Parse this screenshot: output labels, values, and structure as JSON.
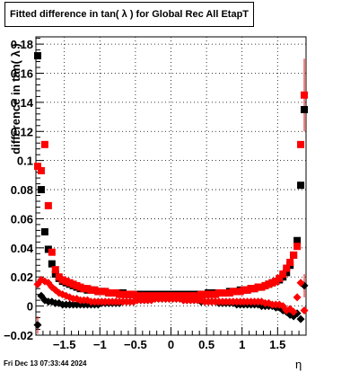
{
  "title": "Fitted difference in tan( λ ) for Global Rec All EtapT",
  "footer": "Fri Dec 13 07:33:44 2024",
  "chart_data": {
    "type": "scatter",
    "title": "Fitted difference in tan( λ ) for Global Rec All EtapT",
    "xlabel": "η",
    "ylabel": "difference in tan( λ )",
    "xlim": [
      -1.9,
      1.9
    ],
    "ylim": [
      -0.02,
      0.185
    ],
    "xticks": [
      -1.5,
      -1,
      -0.5,
      0,
      0.5,
      1,
      1.5
    ],
    "xtick_labels": [
      "−1.5",
      "−1",
      "−0.5",
      "0",
      "0.5",
      "1",
      "1.5"
    ],
    "yticks": [
      -0.02,
      0,
      0.02,
      0.04,
      0.06,
      0.08,
      0.1,
      0.12,
      0.14,
      0.16,
      0.18
    ],
    "ytick_labels": [
      "−0.02",
      "0",
      "0.02",
      "0.04",
      "0.06",
      "0.08",
      "0.1",
      "0.12",
      "0.14",
      "0.16",
      "0.18"
    ],
    "grid": true,
    "series": [
      {
        "color": "#000000",
        "marker": "square",
        "x": [
          -1.875,
          -1.825,
          -1.775,
          -1.725,
          -1.675,
          -1.625,
          -1.575,
          -1.525,
          -1.475,
          -1.425,
          -1.375,
          -1.325,
          -1.275,
          -1.225,
          -1.175,
          -1.125,
          -1.075,
          -1.025,
          -0.975,
          -0.925,
          -0.875,
          -0.825,
          -0.775,
          -0.725,
          -0.675,
          -0.625,
          -0.575,
          -0.525,
          -0.475,
          -0.425,
          -0.375,
          -0.325,
          -0.275,
          -0.225,
          -0.175,
          -0.125,
          -0.075,
          -0.025,
          0.025,
          0.075,
          0.125,
          0.175,
          0.225,
          0.275,
          0.325,
          0.375,
          0.425,
          0.475,
          0.525,
          0.575,
          0.625,
          0.675,
          0.725,
          0.775,
          0.825,
          0.875,
          0.925,
          0.975,
          1.025,
          1.075,
          1.125,
          1.175,
          1.225,
          1.275,
          1.325,
          1.375,
          1.425,
          1.475,
          1.525,
          1.575,
          1.625,
          1.675,
          1.725,
          1.775,
          1.825,
          1.875
        ],
        "y": [
          0.172,
          0.08,
          0.051,
          0.039,
          0.029,
          0.022,
          0.019,
          0.017,
          0.016,
          0.015,
          0.014,
          0.013,
          0.012,
          0.012,
          0.011,
          0.011,
          0.011,
          0.01,
          0.01,
          0.01,
          0.009,
          0.009,
          0.009,
          0.009,
          0.009,
          0.008,
          0.008,
          0.008,
          0.008,
          0.008,
          0.008,
          0.008,
          0.008,
          0.008,
          0.008,
          0.008,
          0.008,
          0.008,
          0.008,
          0.008,
          0.008,
          0.008,
          0.008,
          0.008,
          0.008,
          0.008,
          0.008,
          0.008,
          0.009,
          0.009,
          0.009,
          0.009,
          0.009,
          0.009,
          0.01,
          0.01,
          0.01,
          0.011,
          0.011,
          0.011,
          0.012,
          0.012,
          0.013,
          0.013,
          0.014,
          0.015,
          0.016,
          0.017,
          0.018,
          0.02,
          0.023,
          0.028,
          0.035,
          0.045,
          0.083,
          0.135
        ]
      },
      {
        "color": "#000000",
        "marker": "diamond",
        "x": [
          -1.875,
          -1.825,
          -1.775,
          -1.725,
          -1.675,
          -1.625,
          -1.575,
          -1.525,
          -1.475,
          -1.425,
          -1.375,
          -1.325,
          -1.275,
          -1.225,
          -1.175,
          -1.125,
          -1.075,
          -1.025,
          -0.975,
          -0.925,
          -0.875,
          -0.825,
          -0.775,
          -0.725,
          -0.675,
          -0.625,
          -0.575,
          -0.525,
          -0.475,
          -0.425,
          -0.375,
          -0.325,
          -0.275,
          -0.225,
          -0.175,
          -0.125,
          -0.075,
          -0.025,
          0.025,
          0.075,
          0.125,
          0.175,
          0.225,
          0.275,
          0.325,
          0.375,
          0.425,
          0.475,
          0.525,
          0.575,
          0.625,
          0.675,
          0.725,
          0.775,
          0.825,
          0.875,
          0.925,
          0.975,
          1.025,
          1.075,
          1.125,
          1.175,
          1.225,
          1.275,
          1.325,
          1.375,
          1.425,
          1.475,
          1.525,
          1.575,
          1.625,
          1.675,
          1.725,
          1.775,
          1.825,
          1.875
        ],
        "y": [
          -0.013,
          0.007,
          0.004,
          0.003,
          0.003,
          0.002,
          0.002,
          0.001,
          0.001,
          0.001,
          0.001,
          0.001,
          0.001,
          0.001,
          0.001,
          0.001,
          0.001,
          0.001,
          0.002,
          0.002,
          0.002,
          0.002,
          0.002,
          0.002,
          0.003,
          0.003,
          0.003,
          0.003,
          0.004,
          0.004,
          0.004,
          0.004,
          0.005,
          0.005,
          0.005,
          0.005,
          0.005,
          0.005,
          0.005,
          0.005,
          0.005,
          0.004,
          0.004,
          0.004,
          0.004,
          0.004,
          0.003,
          0.003,
          0.003,
          0.003,
          0.003,
          0.002,
          0.002,
          0.002,
          0.002,
          0.002,
          0.001,
          0.001,
          0.001,
          0.001,
          0.001,
          0.001,
          0.001,
          0.0,
          0.0,
          0.0,
          0.0,
          -0.001,
          -0.001,
          -0.003,
          -0.004,
          -0.006,
          -0.007,
          -0.005,
          -0.009,
          0.014
        ]
      },
      {
        "color": "#ff0000",
        "marker": "square",
        "x": [
          -1.875,
          -1.825,
          -1.775,
          -1.725,
          -1.675,
          -1.625,
          -1.575,
          -1.525,
          -1.475,
          -1.425,
          -1.375,
          -1.325,
          -1.275,
          -1.225,
          -1.175,
          -1.125,
          -1.075,
          -1.025,
          -0.975,
          -0.925,
          -0.875,
          -0.825,
          -0.775,
          -0.725,
          -0.675,
          -0.625,
          -0.575,
          -0.525,
          -0.475,
          -0.425,
          -0.375,
          -0.325,
          -0.275,
          -0.225,
          -0.175,
          -0.125,
          -0.075,
          -0.025,
          0.025,
          0.075,
          0.125,
          0.175,
          0.225,
          0.275,
          0.325,
          0.375,
          0.425,
          0.475,
          0.525,
          0.575,
          0.625,
          0.675,
          0.725,
          0.775,
          0.825,
          0.875,
          0.925,
          0.975,
          1.025,
          1.075,
          1.125,
          1.175,
          1.225,
          1.275,
          1.325,
          1.375,
          1.425,
          1.475,
          1.525,
          1.575,
          1.625,
          1.675,
          1.725,
          1.775,
          1.825,
          1.875
        ],
        "y": [
          0.096,
          0.093,
          0.111,
          0.069,
          0.037,
          0.025,
          0.02,
          0.018,
          0.017,
          0.016,
          0.015,
          0.014,
          0.013,
          0.012,
          0.012,
          0.011,
          0.011,
          0.01,
          0.01,
          0.01,
          0.009,
          0.009,
          0.009,
          0.008,
          0.008,
          0.008,
          0.008,
          0.008,
          0.007,
          0.007,
          0.007,
          0.007,
          0.007,
          0.007,
          0.007,
          0.007,
          0.007,
          0.007,
          0.007,
          0.007,
          0.007,
          0.007,
          0.007,
          0.007,
          0.007,
          0.007,
          0.008,
          0.008,
          0.008,
          0.008,
          0.008,
          0.009,
          0.009,
          0.009,
          0.009,
          0.01,
          0.01,
          0.01,
          0.011,
          0.011,
          0.012,
          0.012,
          0.013,
          0.013,
          0.014,
          0.015,
          0.016,
          0.017,
          0.019,
          0.022,
          0.026,
          0.03,
          0.035,
          0.041,
          0.111,
          0.145
        ]
      },
      {
        "color": "#ff0000",
        "marker": "diamond",
        "x": [
          -1.875,
          -1.825,
          -1.775,
          -1.725,
          -1.675,
          -1.625,
          -1.575,
          -1.525,
          -1.475,
          -1.425,
          -1.375,
          -1.325,
          -1.275,
          -1.225,
          -1.175,
          -1.125,
          -1.075,
          -1.025,
          -0.975,
          -0.925,
          -0.875,
          -0.825,
          -0.775,
          -0.725,
          -0.675,
          -0.625,
          -0.575,
          -0.525,
          -0.475,
          -0.425,
          -0.375,
          -0.325,
          -0.275,
          -0.225,
          -0.175,
          -0.125,
          -0.075,
          -0.025,
          0.025,
          0.075,
          0.125,
          0.175,
          0.225,
          0.275,
          0.325,
          0.375,
          0.425,
          0.475,
          0.525,
          0.575,
          0.625,
          0.675,
          0.725,
          0.775,
          0.825,
          0.875,
          0.925,
          0.975,
          1.025,
          1.075,
          1.125,
          1.175,
          1.225,
          1.275,
          1.325,
          1.375,
          1.425,
          1.475,
          1.525,
          1.575,
          1.625,
          1.675,
          1.725,
          1.775,
          1.825,
          1.875
        ],
        "y": [
          0.015,
          0.018,
          0.017,
          0.016,
          0.013,
          0.011,
          0.009,
          0.008,
          0.007,
          0.006,
          0.005,
          0.005,
          0.004,
          0.004,
          0.004,
          0.003,
          0.003,
          0.003,
          0.003,
          0.003,
          0.003,
          0.003,
          0.003,
          0.003,
          0.003,
          0.003,
          0.003,
          0.003,
          0.004,
          0.004,
          0.004,
          0.004,
          0.004,
          0.005,
          0.005,
          0.005,
          0.005,
          0.005,
          0.005,
          0.005,
          0.005,
          0.004,
          0.004,
          0.004,
          0.004,
          0.004,
          0.004,
          0.003,
          0.003,
          0.003,
          0.003,
          0.003,
          0.003,
          0.003,
          0.003,
          0.003,
          0.003,
          0.003,
          0.003,
          0.003,
          0.003,
          0.003,
          0.003,
          0.003,
          0.002,
          0.002,
          0.001,
          0.001,
          0.001,
          0.0,
          -0.003,
          -0.002,
          -0.004,
          0.006,
          0.016,
          -0.003
        ]
      }
    ]
  }
}
